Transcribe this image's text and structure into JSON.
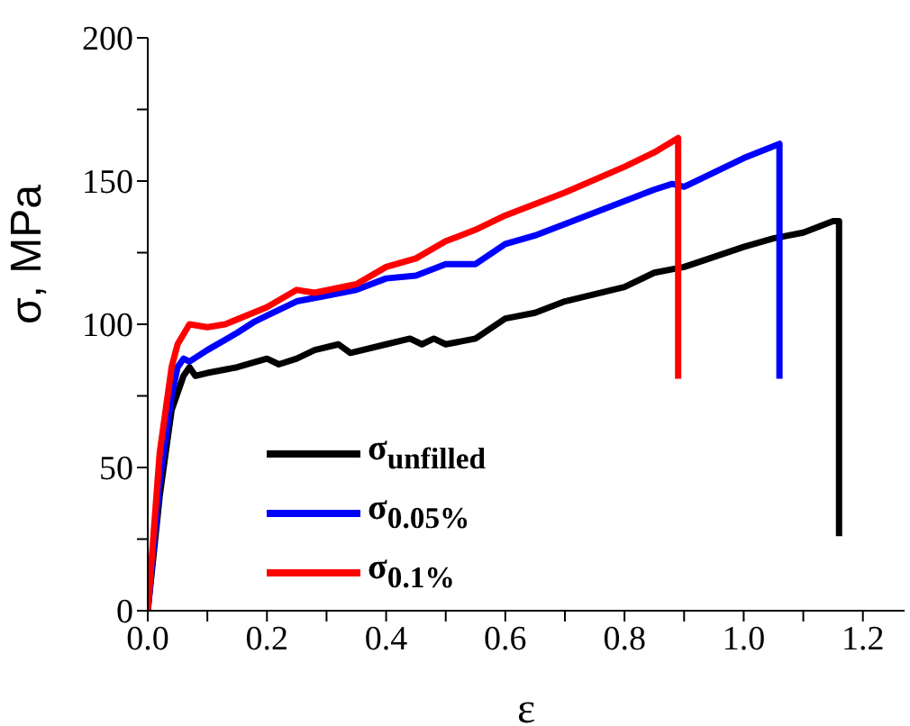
{
  "chart_data": {
    "type": "line",
    "xlabel": "ε",
    "ylabel": "σ, MPa",
    "xlim": [
      0,
      1.27
    ],
    "ylim": [
      0,
      200
    ],
    "xticks": [
      {
        "value": 0,
        "label": "0.0"
      },
      {
        "value": 0.1,
        "label": null
      },
      {
        "value": 0.2,
        "label": "0.2"
      },
      {
        "value": 0.3,
        "label": null
      },
      {
        "value": 0.4,
        "label": "0.4"
      },
      {
        "value": 0.5,
        "label": null
      },
      {
        "value": 0.6,
        "label": "0.6"
      },
      {
        "value": 0.7,
        "label": null
      },
      {
        "value": 0.8,
        "label": "0.8"
      },
      {
        "value": 0.9,
        "label": null
      },
      {
        "value": 1,
        "label": "1.0"
      },
      {
        "value": 1.1,
        "label": null
      },
      {
        "value": 1.2,
        "label": "1.2"
      }
    ],
    "yticks": [
      0,
      {
        "value": 25,
        "label": null
      },
      50,
      {
        "value": 75,
        "label": null
      },
      100,
      {
        "value": 125,
        "label": null
      },
      150,
      {
        "value": 175,
        "label": null
      },
      200
    ],
    "grid": false,
    "legend": "bottom left",
    "marker": "none",
    "line_style": "solid",
    "series": [
      {
        "name": "σ$_{unfilled}$",
        "color": "#000000",
        "x": [
          0,
          0.02,
          0.04,
          0.06,
          0.07,
          0.08,
          0.1,
          0.15,
          0.2,
          0.22,
          0.25,
          0.28,
          0.32,
          0.34,
          0.4,
          0.44,
          0.46,
          0.48,
          0.5,
          0.55,
          0.6,
          0.65,
          0.7,
          0.8,
          0.85,
          0.9,
          1.0,
          1.05,
          1.1,
          1.15,
          1.16,
          1.16
        ],
        "values": [
          0,
          40,
          70,
          82,
          85,
          82,
          83,
          85,
          88,
          86,
          88,
          91,
          93,
          90,
          93,
          95,
          93,
          95,
          93,
          95,
          102,
          104,
          108,
          113,
          118,
          120,
          127,
          130,
          132,
          136,
          136,
          26
        ]
      },
      {
        "name": "σ$_{0.05%}$",
        "color": "#0000ff",
        "x": [
          0,
          0.02,
          0.04,
          0.05,
          0.06,
          0.07,
          0.1,
          0.15,
          0.18,
          0.2,
          0.25,
          0.3,
          0.35,
          0.4,
          0.45,
          0.5,
          0.55,
          0.6,
          0.65,
          0.7,
          0.8,
          0.85,
          0.88,
          0.9,
          1.0,
          1.06,
          1.06
        ],
        "values": [
          0,
          45,
          75,
          85,
          88,
          87,
          91,
          97,
          101,
          103,
          108,
          110,
          112,
          116,
          117,
          121,
          121,
          128,
          131,
          135,
          143,
          147,
          149,
          148,
          158,
          163,
          81
        ]
      },
      {
        "name": "σ$_{0.1%}$",
        "color": "#ff0000",
        "x": [
          0,
          0.02,
          0.04,
          0.05,
          0.07,
          0.1,
          0.13,
          0.2,
          0.25,
          0.28,
          0.35,
          0.4,
          0.45,
          0.5,
          0.55,
          0.6,
          0.7,
          0.8,
          0.85,
          0.89,
          0.89
        ],
        "values": [
          0,
          55,
          85,
          93,
          100,
          99,
          100,
          106,
          112,
          111,
          114,
          120,
          123,
          129,
          133,
          138,
          146,
          155,
          160,
          165,
          81
        ]
      }
    ]
  }
}
